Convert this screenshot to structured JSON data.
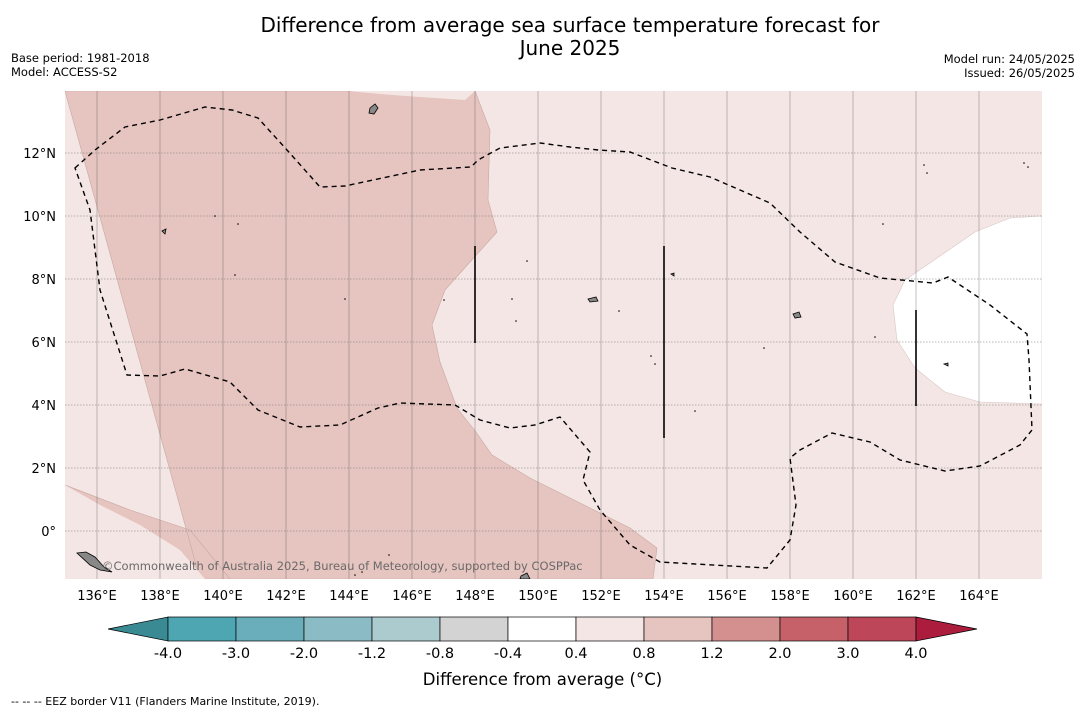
{
  "title": {
    "line1": "Difference from average sea surface temperature forecast for",
    "line2": "June 2025"
  },
  "meta": {
    "base_period": "Base period: 1981-2018",
    "model": "Model: ACCESS-S2",
    "model_run": "Model run: 24/05/2025",
    "issued": "Issued: 26/05/2025"
  },
  "map": {
    "attribution": "©Commonwealth of Australia 2025, Bureau of Meteorology, supported by COSPPac",
    "lat_ticks": [
      "12°N",
      "10°N",
      "8°N",
      "6°N",
      "4°N",
      "2°N",
      "0°"
    ],
    "lon_ticks": [
      "136°E",
      "138°E",
      "140°E",
      "142°E",
      "144°E",
      "146°E",
      "148°E",
      "150°E",
      "152°E",
      "154°E",
      "156°E",
      "158°E",
      "160°E",
      "162°E",
      "164°E"
    ],
    "region_colors": {
      "0.8 to 1.2": "#e6c4bf",
      "0.4 to 0.8": "#f4e6e4",
      "-0.4 to 0.4": "#ffffff"
    }
  },
  "colorbar": {
    "label": "Difference from average (°C)",
    "ticks": [
      "-4.0",
      "-3.0",
      "-2.0",
      "-1.2",
      "-0.8",
      "-0.4",
      "0.4",
      "0.8",
      "1.2",
      "2.0",
      "3.0",
      "4.0"
    ],
    "colors": [
      "#3a8a93",
      "#4ea6b3",
      "#6aaebb",
      "#8bbcc5",
      "#abcbcf",
      "#d3d3d3",
      "#ffffff",
      "#f4e6e4",
      "#e6c4bf",
      "#d4908f",
      "#c6616a",
      "#bd4658",
      "#ab1c3d"
    ]
  },
  "footnote": "--  --  -- EEZ border V11 (Flanders Marine Institute, 2019)."
}
